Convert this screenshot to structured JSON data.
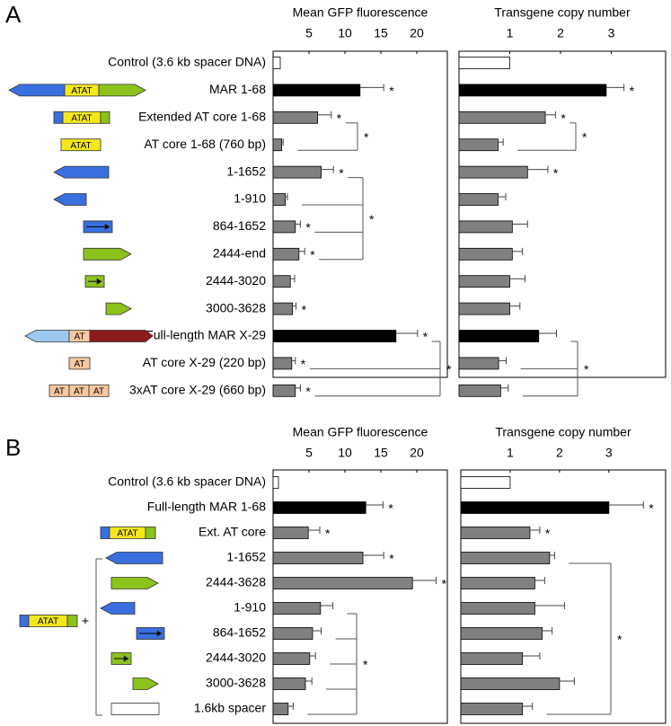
{
  "panels": [
    "A",
    "B"
  ],
  "icons": {
    "atat": "ATAT",
    "at": "AT",
    "plus": "+"
  },
  "chart_data": [
    {
      "type": "bar",
      "orientation": "horizontal",
      "title": "Mean GFP fluorescence",
      "categories": [
        "Control (3.6 kb spacer DNA)",
        "MAR 1-68",
        "Extended AT core 1-68",
        "AT core 1-68 (760 bp)",
        "1-1652",
        "1-910",
        "864-1652",
        "2444-end",
        "2444-3020",
        "3000-3628",
        "Full-length MAR X-29",
        "AT core X-29 (220 bp)",
        "3xAT core X-29 (660 bp)"
      ],
      "values": [
        1.0,
        12.1,
        6.2,
        1.2,
        6.7,
        1.7,
        3.1,
        3.6,
        2.4,
        2.7,
        17.1,
        2.6,
        3.1
      ],
      "errors": [
        0,
        3.3,
        1.9,
        0.2,
        1.7,
        0.3,
        0.7,
        0.8,
        0.6,
        0.5,
        3.0,
        0.5,
        0.7
      ],
      "colors": [
        "#ffffff",
        "#000000",
        "#808080",
        "#808080",
        "#808080",
        "#808080",
        "#808080",
        "#808080",
        "#808080",
        "#808080",
        "#000000",
        "#808080",
        "#808080"
      ],
      "significance": [
        null,
        "*",
        "*",
        null,
        "*",
        null,
        "*",
        "*",
        null,
        "*",
        "*",
        "*",
        "*"
      ],
      "bracket_labels": [
        "*",
        "*",
        "*"
      ],
      "xlim": [
        0,
        24.25
      ],
      "xticks": [
        5,
        10,
        15,
        20
      ]
    },
    {
      "type": "bar",
      "orientation": "horizontal",
      "title": "Transgene copy number",
      "values": [
        1.0,
        2.9,
        1.7,
        0.77,
        1.35,
        0.77,
        1.05,
        1.05,
        1.0,
        1.0,
        1.57,
        0.78,
        0.82
      ],
      "errors": [
        0,
        0.35,
        0.2,
        0.1,
        0.4,
        0.15,
        0.3,
        0.2,
        0.3,
        0.2,
        0.35,
        0.15,
        0.15
      ],
      "colors": [
        "#ffffff",
        "#000000",
        "#808080",
        "#808080",
        "#808080",
        "#808080",
        "#808080",
        "#808080",
        "#808080",
        "#808080",
        "#000000",
        "#808080",
        "#808080"
      ],
      "significance": [
        null,
        "*",
        "*",
        null,
        "*",
        null,
        null,
        null,
        null,
        null,
        null,
        null,
        null
      ],
      "bracket_labels": [
        "*",
        "*"
      ],
      "xlim": [
        0,
        4.07
      ],
      "xticks": [
        1,
        2,
        3
      ]
    },
    {
      "type": "bar",
      "orientation": "horizontal",
      "title": "Mean GFP fluorescence",
      "categories": [
        "Control (3.6 kb spacer DNA)",
        "Full-length MAR 1-68",
        "Ext. AT core",
        "1-1652",
        "2444-3628",
        "1-910",
        "864-1652",
        "2444-3020",
        "3000-3628",
        "1.6kb spacer"
      ],
      "values": [
        0.75,
        12.9,
        4.9,
        12.5,
        19.4,
        6.6,
        5.5,
        5.1,
        4.5,
        2.1
      ],
      "errors": [
        0,
        2.4,
        1.6,
        2.9,
        3.3,
        1.7,
        1.2,
        0.8,
        0.9,
        0.7
      ],
      "colors": [
        "#ffffff",
        "#000000",
        "#808080",
        "#808080",
        "#808080",
        "#808080",
        "#808080",
        "#808080",
        "#808080",
        "#808080"
      ],
      "significance": [
        null,
        "*",
        "*",
        "*",
        "*",
        null,
        null,
        null,
        null,
        null
      ],
      "bracket_labels": [
        "*"
      ],
      "xlim": [
        0,
        24.25
      ],
      "xticks": [
        5,
        10,
        15,
        20
      ]
    },
    {
      "type": "bar",
      "orientation": "horizontal",
      "title": "Transgene copy number",
      "values": [
        1.0,
        3.0,
        1.4,
        1.8,
        1.5,
        1.5,
        1.65,
        1.25,
        2.0,
        1.25
      ],
      "errors": [
        0,
        0.7,
        0.2,
        0.1,
        0.2,
        0.6,
        0.2,
        0.35,
        0.3,
        0.2
      ],
      "colors": [
        "#ffffff",
        "#000000",
        "#808080",
        "#808080",
        "#808080",
        "#808080",
        "#808080",
        "#808080",
        "#808080",
        "#808080"
      ],
      "significance": [
        null,
        "*",
        "*",
        null,
        null,
        null,
        null,
        null,
        null,
        null
      ],
      "bracket_labels": [
        "*"
      ],
      "xlim": [
        0,
        4.15
      ],
      "xticks": [
        1,
        2,
        3
      ]
    }
  ]
}
